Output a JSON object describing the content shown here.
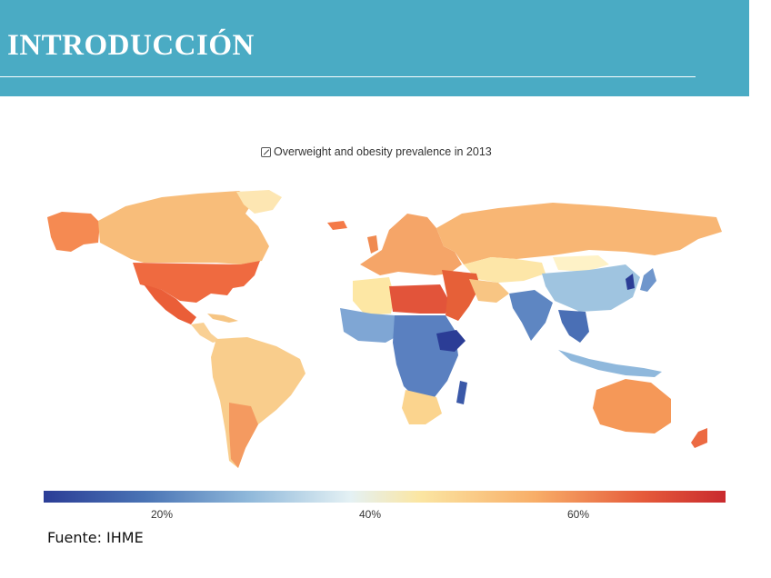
{
  "header": {
    "title": "INTRODUCCIÓN"
  },
  "map": {
    "title": "Overweight and obesity prevalence in 2013",
    "legend": {
      "ticks": [
        "20%",
        "40%",
        "60%"
      ],
      "tick_values": [
        20,
        40,
        60
      ],
      "range": [
        8,
        75
      ],
      "colors": [
        "#2b3d96",
        "#4a74b5",
        "#8fb8da",
        "#e4f1f4",
        "#fbe6a3",
        "#f8ae68",
        "#e55a3a",
        "#c92a2e"
      ]
    }
  },
  "source": "Fuente: IHME"
}
